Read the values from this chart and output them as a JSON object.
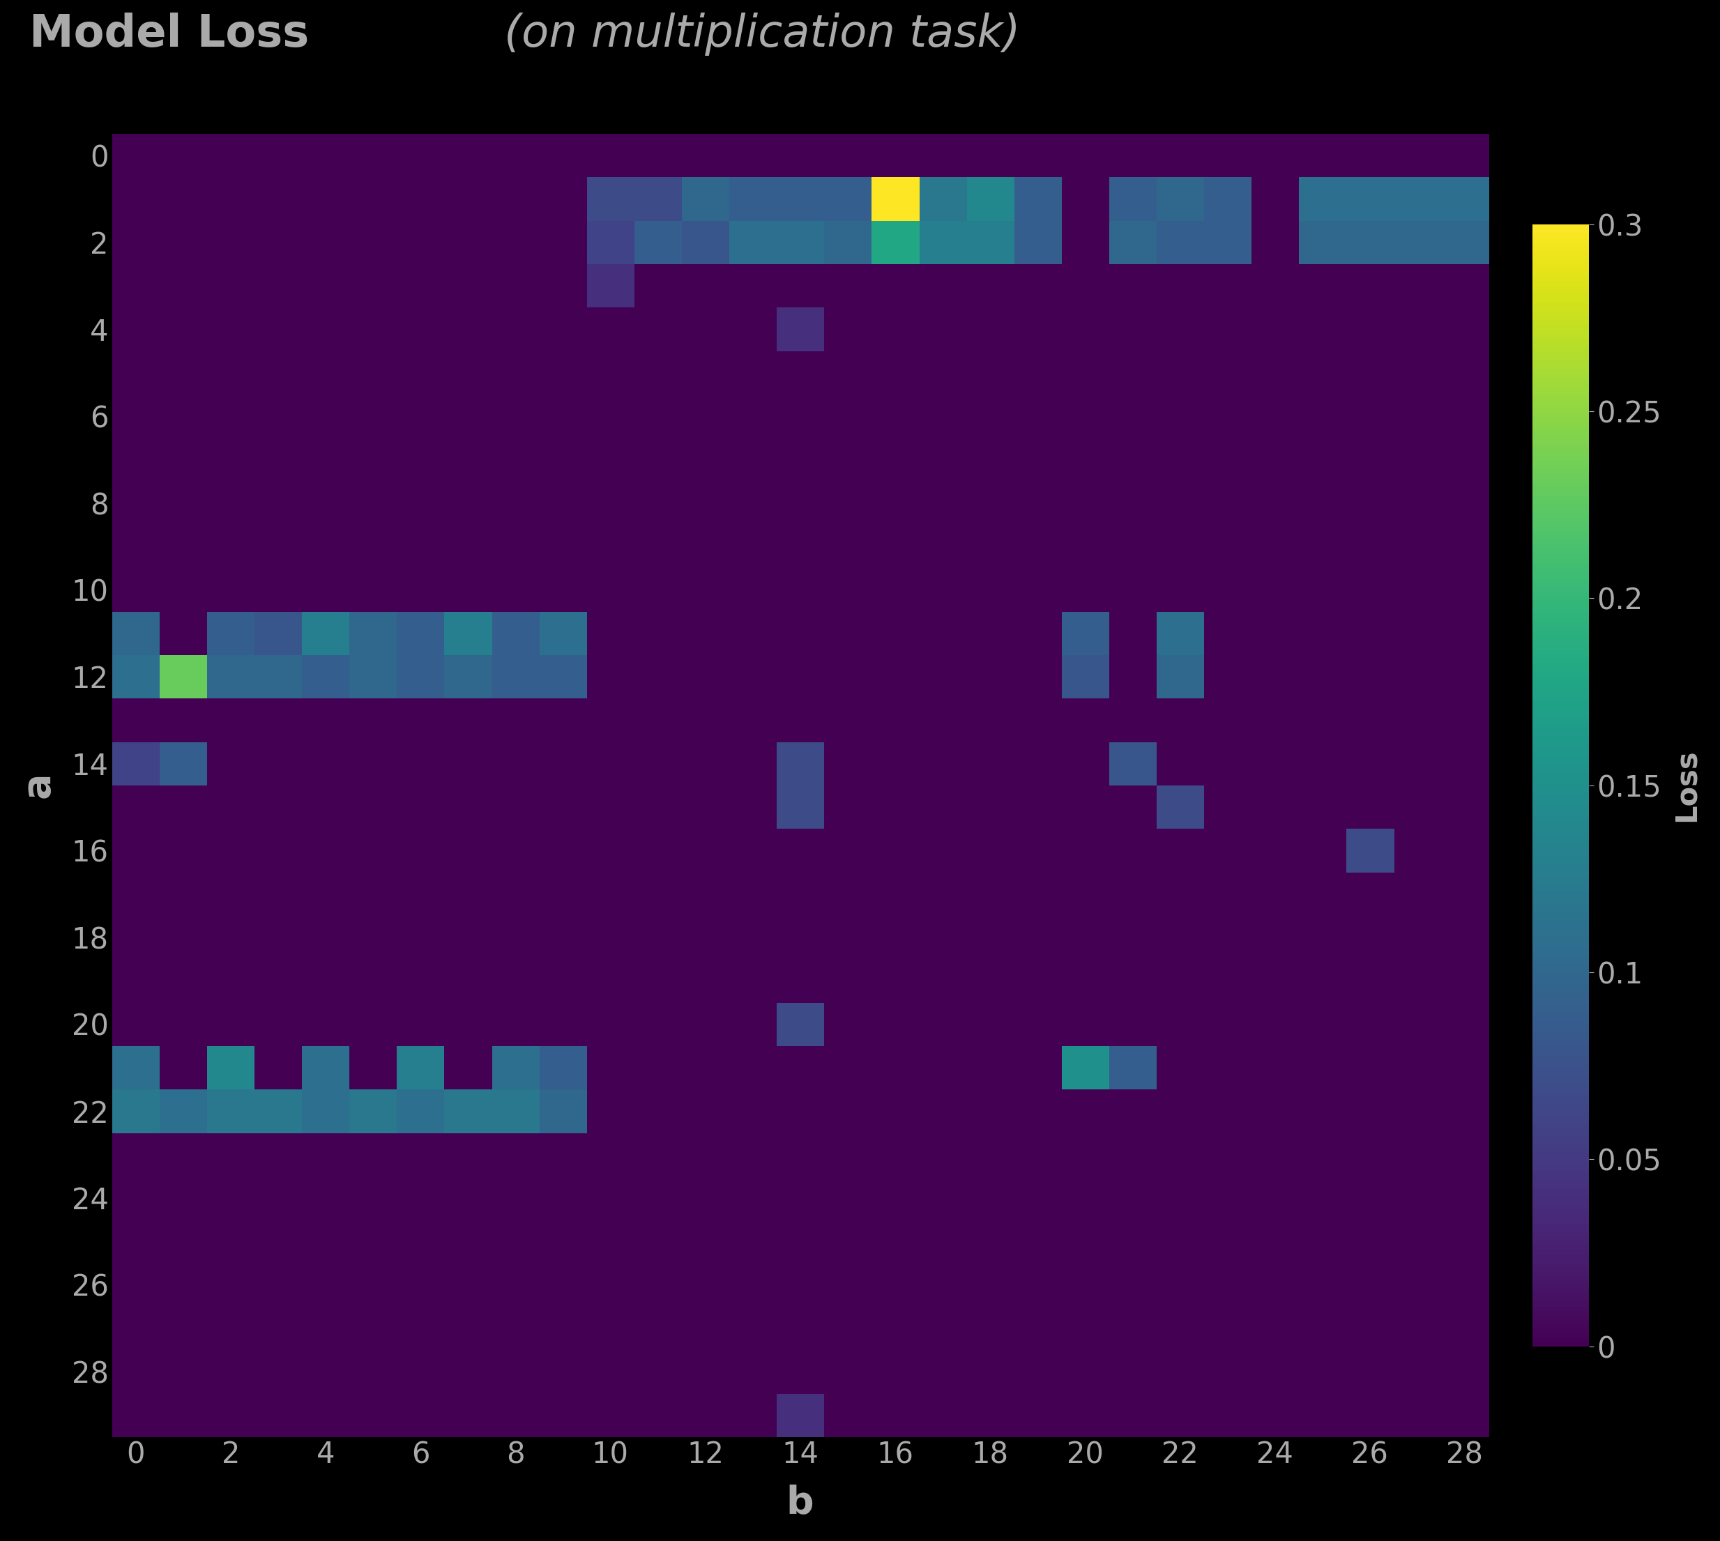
{
  "title_bold": "Model Loss",
  "title_italic": " (on multiplication task)",
  "xlabel": "b",
  "ylabel": "a",
  "cbar_label": "Loss",
  "vmin": 0,
  "vmax": 0.3,
  "cmap": "viridis",
  "background_color": "#000000",
  "text_color": "#aaaaaa",
  "n": 29,
  "title_fontsize": 46,
  "axis_label_fontsize": 40,
  "tick_fontsize": 30,
  "cbar_fontsize": 30,
  "heatmap_data": [
    [
      0.0,
      0.0,
      0.0,
      0.0,
      0.0,
      0.0,
      0.0,
      0.0,
      0.0,
      0.0,
      0.0,
      0.0,
      0.0,
      0.0,
      0.0,
      0.0,
      0.0,
      0.0,
      0.0,
      0.0,
      0.0,
      0.0,
      0.0,
      0.0,
      0.0,
      0.0,
      0.0,
      0.0,
      0.0
    ],
    [
      0.0,
      0.0,
      0.0,
      0.0,
      0.0,
      0.0,
      0.0,
      0.0,
      0.0,
      0.0,
      0.07,
      0.07,
      0.1,
      0.09,
      0.09,
      0.09,
      0.3,
      0.12,
      0.14,
      0.09,
      0.0,
      0.09,
      0.1,
      0.09,
      0.0,
      0.11,
      0.11,
      0.11,
      0.11
    ],
    [
      0.0,
      0.0,
      0.0,
      0.0,
      0.0,
      0.0,
      0.0,
      0.0,
      0.0,
      0.0,
      0.06,
      0.09,
      0.08,
      0.11,
      0.11,
      0.1,
      0.18,
      0.13,
      0.13,
      0.09,
      0.0,
      0.1,
      0.09,
      0.09,
      0.0,
      0.1,
      0.1,
      0.1,
      0.1
    ],
    [
      0.0,
      0.0,
      0.0,
      0.0,
      0.0,
      0.0,
      0.0,
      0.0,
      0.0,
      0.0,
      0.04,
      0.0,
      0.0,
      0.0,
      0.0,
      0.0,
      0.0,
      0.0,
      0.0,
      0.0,
      0.0,
      0.0,
      0.0,
      0.0,
      0.0,
      0.0,
      0.0,
      0.0,
      0.0
    ],
    [
      0.0,
      0.0,
      0.0,
      0.0,
      0.0,
      0.0,
      0.0,
      0.0,
      0.0,
      0.0,
      0.0,
      0.0,
      0.0,
      0.0,
      0.04,
      0.0,
      0.0,
      0.0,
      0.0,
      0.0,
      0.0,
      0.0,
      0.0,
      0.0,
      0.0,
      0.0,
      0.0,
      0.0,
      0.0
    ],
    [
      0.0,
      0.0,
      0.0,
      0.0,
      0.0,
      0.0,
      0.0,
      0.0,
      0.0,
      0.0,
      0.0,
      0.0,
      0.0,
      0.0,
      0.0,
      0.0,
      0.0,
      0.0,
      0.0,
      0.0,
      0.0,
      0.0,
      0.0,
      0.0,
      0.0,
      0.0,
      0.0,
      0.0,
      0.0
    ],
    [
      0.0,
      0.0,
      0.0,
      0.0,
      0.0,
      0.0,
      0.0,
      0.0,
      0.0,
      0.0,
      0.0,
      0.0,
      0.0,
      0.0,
      0.0,
      0.0,
      0.0,
      0.0,
      0.0,
      0.0,
      0.0,
      0.0,
      0.0,
      0.0,
      0.0,
      0.0,
      0.0,
      0.0,
      0.0
    ],
    [
      0.0,
      0.0,
      0.0,
      0.0,
      0.0,
      0.0,
      0.0,
      0.0,
      0.0,
      0.0,
      0.0,
      0.0,
      0.0,
      0.0,
      0.0,
      0.0,
      0.0,
      0.0,
      0.0,
      0.0,
      0.0,
      0.0,
      0.0,
      0.0,
      0.0,
      0.0,
      0.0,
      0.0,
      0.0
    ],
    [
      0.0,
      0.0,
      0.0,
      0.0,
      0.0,
      0.0,
      0.0,
      0.0,
      0.0,
      0.0,
      0.0,
      0.0,
      0.0,
      0.0,
      0.0,
      0.0,
      0.0,
      0.0,
      0.0,
      0.0,
      0.0,
      0.0,
      0.0,
      0.0,
      0.0,
      0.0,
      0.0,
      0.0,
      0.0
    ],
    [
      0.0,
      0.0,
      0.0,
      0.0,
      0.0,
      0.0,
      0.0,
      0.0,
      0.0,
      0.0,
      0.0,
      0.0,
      0.0,
      0.0,
      0.0,
      0.0,
      0.0,
      0.0,
      0.0,
      0.0,
      0.0,
      0.0,
      0.0,
      0.0,
      0.0,
      0.0,
      0.0,
      0.0,
      0.0
    ],
    [
      0.0,
      0.0,
      0.0,
      0.0,
      0.0,
      0.0,
      0.0,
      0.0,
      0.0,
      0.0,
      0.0,
      0.0,
      0.0,
      0.0,
      0.0,
      0.0,
      0.0,
      0.0,
      0.0,
      0.0,
      0.0,
      0.0,
      0.0,
      0.0,
      0.0,
      0.0,
      0.0,
      0.0,
      0.0
    ],
    [
      0.1,
      0.0,
      0.09,
      0.08,
      0.13,
      0.1,
      0.09,
      0.13,
      0.09,
      0.11,
      0.0,
      0.0,
      0.0,
      0.0,
      0.0,
      0.0,
      0.0,
      0.0,
      0.0,
      0.0,
      0.09,
      0.0,
      0.11,
      0.0,
      0.0,
      0.0,
      0.0,
      0.0,
      0.0
    ],
    [
      0.11,
      0.23,
      0.1,
      0.1,
      0.09,
      0.1,
      0.09,
      0.1,
      0.09,
      0.09,
      0.0,
      0.0,
      0.0,
      0.0,
      0.0,
      0.0,
      0.0,
      0.0,
      0.0,
      0.0,
      0.08,
      0.0,
      0.1,
      0.0,
      0.0,
      0.0,
      0.0,
      0.0,
      0.0
    ],
    [
      0.0,
      0.0,
      0.0,
      0.0,
      0.0,
      0.0,
      0.0,
      0.0,
      0.0,
      0.0,
      0.0,
      0.0,
      0.0,
      0.0,
      0.0,
      0.0,
      0.0,
      0.0,
      0.0,
      0.0,
      0.0,
      0.0,
      0.0,
      0.0,
      0.0,
      0.0,
      0.0,
      0.0,
      0.0
    ],
    [
      0.06,
      0.09,
      0.0,
      0.0,
      0.0,
      0.0,
      0.0,
      0.0,
      0.0,
      0.0,
      0.0,
      0.0,
      0.0,
      0.0,
      0.07,
      0.0,
      0.0,
      0.0,
      0.0,
      0.0,
      0.0,
      0.08,
      0.0,
      0.0,
      0.0,
      0.0,
      0.0,
      0.0,
      0.0
    ],
    [
      0.0,
      0.0,
      0.0,
      0.0,
      0.0,
      0.0,
      0.0,
      0.0,
      0.0,
      0.0,
      0.0,
      0.0,
      0.0,
      0.0,
      0.07,
      0.0,
      0.0,
      0.0,
      0.0,
      0.0,
      0.0,
      0.0,
      0.07,
      0.0,
      0.0,
      0.0,
      0.0,
      0.0,
      0.0
    ],
    [
      0.0,
      0.0,
      0.0,
      0.0,
      0.0,
      0.0,
      0.0,
      0.0,
      0.0,
      0.0,
      0.0,
      0.0,
      0.0,
      0.0,
      0.0,
      0.0,
      0.0,
      0.0,
      0.0,
      0.0,
      0.0,
      0.0,
      0.0,
      0.0,
      0.0,
      0.0,
      0.07,
      0.0,
      0.0
    ],
    [
      0.0,
      0.0,
      0.0,
      0.0,
      0.0,
      0.0,
      0.0,
      0.0,
      0.0,
      0.0,
      0.0,
      0.0,
      0.0,
      0.0,
      0.0,
      0.0,
      0.0,
      0.0,
      0.0,
      0.0,
      0.0,
      0.0,
      0.0,
      0.0,
      0.0,
      0.0,
      0.0,
      0.0,
      0.0
    ],
    [
      0.0,
      0.0,
      0.0,
      0.0,
      0.0,
      0.0,
      0.0,
      0.0,
      0.0,
      0.0,
      0.0,
      0.0,
      0.0,
      0.0,
      0.0,
      0.0,
      0.0,
      0.0,
      0.0,
      0.0,
      0.0,
      0.0,
      0.0,
      0.0,
      0.0,
      0.0,
      0.0,
      0.0,
      0.0
    ],
    [
      0.0,
      0.0,
      0.0,
      0.0,
      0.0,
      0.0,
      0.0,
      0.0,
      0.0,
      0.0,
      0.0,
      0.0,
      0.0,
      0.0,
      0.0,
      0.0,
      0.0,
      0.0,
      0.0,
      0.0,
      0.0,
      0.0,
      0.0,
      0.0,
      0.0,
      0.0,
      0.0,
      0.0,
      0.0
    ],
    [
      0.0,
      0.0,
      0.0,
      0.0,
      0.0,
      0.0,
      0.0,
      0.0,
      0.0,
      0.0,
      0.0,
      0.0,
      0.0,
      0.0,
      0.07,
      0.0,
      0.0,
      0.0,
      0.0,
      0.0,
      0.0,
      0.0,
      0.0,
      0.0,
      0.0,
      0.0,
      0.0,
      0.0,
      0.0
    ],
    [
      0.11,
      0.0,
      0.14,
      0.0,
      0.11,
      0.0,
      0.13,
      0.0,
      0.11,
      0.09,
      0.0,
      0.0,
      0.0,
      0.0,
      0.0,
      0.0,
      0.0,
      0.0,
      0.0,
      0.0,
      0.15,
      0.09,
      0.0,
      0.0,
      0.0,
      0.0,
      0.0,
      0.0,
      0.0
    ],
    [
      0.12,
      0.11,
      0.12,
      0.12,
      0.11,
      0.12,
      0.11,
      0.12,
      0.12,
      0.1,
      0.0,
      0.0,
      0.0,
      0.0,
      0.0,
      0.0,
      0.0,
      0.0,
      0.0,
      0.0,
      0.0,
      0.0,
      0.0,
      0.0,
      0.0,
      0.0,
      0.0,
      0.0,
      0.0
    ],
    [
      0.0,
      0.0,
      0.0,
      0.0,
      0.0,
      0.0,
      0.0,
      0.0,
      0.0,
      0.0,
      0.0,
      0.0,
      0.0,
      0.0,
      0.0,
      0.0,
      0.0,
      0.0,
      0.0,
      0.0,
      0.0,
      0.0,
      0.0,
      0.0,
      0.0,
      0.0,
      0.0,
      0.0,
      0.0
    ],
    [
      0.0,
      0.0,
      0.0,
      0.0,
      0.0,
      0.0,
      0.0,
      0.0,
      0.0,
      0.0,
      0.0,
      0.0,
      0.0,
      0.0,
      0.0,
      0.0,
      0.0,
      0.0,
      0.0,
      0.0,
      0.0,
      0.0,
      0.0,
      0.0,
      0.0,
      0.0,
      0.0,
      0.0,
      0.0
    ],
    [
      0.0,
      0.0,
      0.0,
      0.0,
      0.0,
      0.0,
      0.0,
      0.0,
      0.0,
      0.0,
      0.0,
      0.0,
      0.0,
      0.0,
      0.0,
      0.0,
      0.0,
      0.0,
      0.0,
      0.0,
      0.0,
      0.0,
      0.0,
      0.0,
      0.0,
      0.0,
      0.0,
      0.0,
      0.0
    ],
    [
      0.0,
      0.0,
      0.0,
      0.0,
      0.0,
      0.0,
      0.0,
      0.0,
      0.0,
      0.0,
      0.0,
      0.0,
      0.0,
      0.0,
      0.0,
      0.0,
      0.0,
      0.0,
      0.0,
      0.0,
      0.0,
      0.0,
      0.0,
      0.0,
      0.0,
      0.0,
      0.0,
      0.0,
      0.0
    ],
    [
      0.0,
      0.0,
      0.0,
      0.0,
      0.0,
      0.0,
      0.0,
      0.0,
      0.0,
      0.0,
      0.0,
      0.0,
      0.0,
      0.0,
      0.0,
      0.0,
      0.0,
      0.0,
      0.0,
      0.0,
      0.0,
      0.0,
      0.0,
      0.0,
      0.0,
      0.0,
      0.0,
      0.0,
      0.0
    ],
    [
      0.0,
      0.0,
      0.0,
      0.0,
      0.0,
      0.0,
      0.0,
      0.0,
      0.0,
      0.0,
      0.0,
      0.0,
      0.0,
      0.0,
      0.0,
      0.0,
      0.0,
      0.0,
      0.0,
      0.0,
      0.0,
      0.0,
      0.0,
      0.0,
      0.0,
      0.0,
      0.0,
      0.0,
      0.0
    ],
    [
      0.0,
      0.0,
      0.0,
      0.0,
      0.0,
      0.0,
      0.0,
      0.0,
      0.0,
      0.0,
      0.0,
      0.0,
      0.0,
      0.0,
      0.04,
      0.0,
      0.0,
      0.0,
      0.0,
      0.0,
      0.0,
      0.0,
      0.0,
      0.0,
      0.0,
      0.0,
      0.0,
      0.0,
      0.0
    ]
  ]
}
